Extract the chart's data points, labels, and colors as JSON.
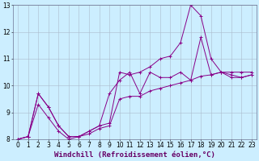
{
  "xlabel": "Windchill (Refroidissement éolien,°C)",
  "background_color": "#cceeff",
  "grid_color": "#aabbcc",
  "line_color": "#880088",
  "x": [
    0,
    1,
    2,
    3,
    4,
    5,
    6,
    7,
    8,
    9,
    10,
    11,
    12,
    13,
    14,
    15,
    16,
    17,
    18,
    19,
    20,
    21,
    22,
    23
  ],
  "line1": [
    8.0,
    8.1,
    9.7,
    9.2,
    8.5,
    8.1,
    8.1,
    8.3,
    8.5,
    8.6,
    10.5,
    10.4,
    10.5,
    10.7,
    11.0,
    11.1,
    11.6,
    13.0,
    12.6,
    11.0,
    10.5,
    10.3,
    10.3,
    10.4
  ],
  "line2": [
    8.0,
    8.1,
    9.7,
    9.2,
    8.5,
    8.1,
    8.1,
    8.3,
    8.5,
    9.7,
    10.2,
    10.5,
    9.7,
    10.5,
    10.3,
    10.3,
    10.5,
    10.2,
    11.8,
    10.4,
    10.5,
    10.4,
    10.3,
    10.4
  ],
  "line3": [
    8.0,
    8.1,
    9.3,
    8.8,
    8.3,
    8.0,
    8.1,
    8.2,
    8.4,
    8.5,
    9.5,
    9.6,
    9.6,
    9.8,
    9.9,
    10.0,
    10.1,
    10.2,
    10.35,
    10.4,
    10.5,
    10.5,
    10.5,
    10.5
  ],
  "ylim": [
    8,
    13
  ],
  "xlim": [
    -0.5,
    23.5
  ],
  "yticks": [
    8,
    9,
    10,
    11,
    12,
    13
  ],
  "xticks": [
    0,
    1,
    2,
    3,
    4,
    5,
    6,
    7,
    8,
    9,
    10,
    11,
    12,
    13,
    14,
    15,
    16,
    17,
    18,
    19,
    20,
    21,
    22,
    23
  ],
  "tick_fontsize": 5.5,
  "xlabel_fontsize": 6.5
}
